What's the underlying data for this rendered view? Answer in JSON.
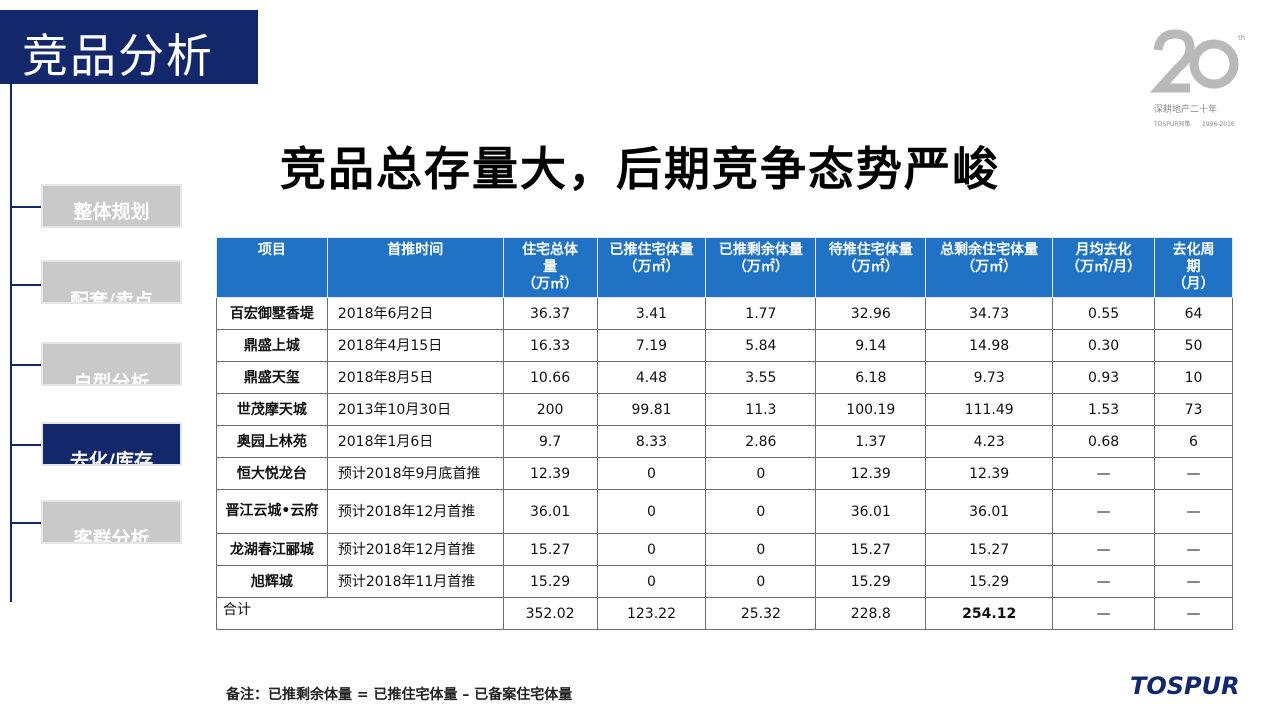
{
  "section_title": "竞品分析",
  "headline": "竞品总存量大，后期竞争态势严峻",
  "nav": [
    {
      "label": "整体规划",
      "active": false
    },
    {
      "label": "配套/卖点",
      "active": false
    },
    {
      "label": "户型分析",
      "active": false
    },
    {
      "label": "去化/库存",
      "active": true
    },
    {
      "label": "客群分析",
      "active": false
    }
  ],
  "logo": {
    "numeral": "20",
    "suffix": "th",
    "caption": "深耕地产二十年",
    "sub_brand": "TOSPUR同策",
    "years": "1996-2016"
  },
  "table": {
    "headers": [
      [
        "项目"
      ],
      [
        "首推时间"
      ],
      [
        "住宅总体",
        "量",
        "（万㎡）"
      ],
      [
        "已推住宅体量",
        "（万㎡）"
      ],
      [
        "已推剩余体量",
        "（万㎡）"
      ],
      [
        "待推住宅体量",
        "（万㎡）"
      ],
      [
        "总剩余住宅体量",
        "（万㎡）"
      ],
      [
        "月均去化",
        "（万㎡/月）"
      ],
      [
        "去化周",
        "期",
        "（月）"
      ]
    ],
    "rows": [
      [
        "百宏御墅香堤",
        "2018年6月2日",
        "36.37",
        "3.41",
        "1.77",
        "32.96",
        "34.73",
        "0.55",
        "64"
      ],
      [
        "鼎盛上城",
        "2018年4月15日",
        "16.33",
        "7.19",
        "5.84",
        "9.14",
        "14.98",
        "0.30",
        "50"
      ],
      [
        "鼎盛天玺",
        "2018年8月5日",
        "10.66",
        "4.48",
        "3.55",
        "6.18",
        "9.73",
        "0.93",
        "10"
      ],
      [
        "世茂摩天城",
        "2013年10月30日",
        "200",
        "99.81",
        "11.3",
        "100.19",
        "111.49",
        "1.53",
        "73"
      ],
      [
        "奥园上林苑",
        "2018年1月6日",
        "9.7",
        "8.33",
        "2.86",
        "1.37",
        "4.23",
        "0.68",
        "6"
      ],
      [
        "恒大悦龙台",
        "预计2018年9月底首推",
        "12.39",
        "0",
        "0",
        "12.39",
        "12.39",
        "—",
        "—"
      ],
      [
        "晋江云城•云府",
        "预计2018年12月首推",
        "36.01",
        "0",
        "0",
        "36.01",
        "36.01",
        "—",
        "—"
      ],
      [
        "龙湖春江郦城",
        "预计2018年12月首推",
        "15.27",
        "0",
        "0",
        "15.27",
        "15.27",
        "—",
        "—"
      ],
      [
        "旭辉城",
        "预计2018年11月首推",
        "15.29",
        "0",
        "0",
        "15.29",
        "15.29",
        "—",
        "—"
      ]
    ],
    "total": [
      "合计",
      "352.02",
      "123.22",
      "25.32",
      "228.8",
      "254.12",
      "—",
      "—"
    ]
  },
  "note": "备注：已推剩余体量 = 已推住宅体量 – 已备案住宅体量",
  "brand": "TOSPUR"
}
